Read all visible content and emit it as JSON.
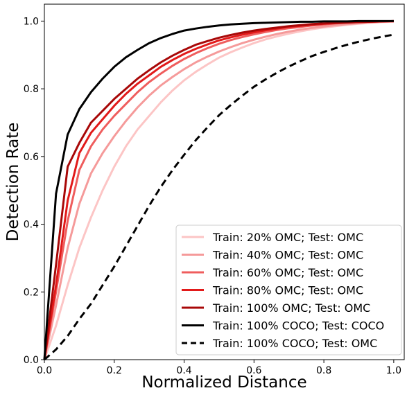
{
  "chart_data": {
    "type": "line",
    "xlabel": "Normalized Distance",
    "ylabel": "Detection Rate",
    "xlim": [
      0.0,
      1.03
    ],
    "ylim": [
      0.0,
      1.05
    ],
    "x_ticks": [
      0.0,
      0.2,
      0.4,
      0.6,
      0.8,
      1.0
    ],
    "x_tick_labels": [
      "0.0",
      "0.2",
      "0.4",
      "0.6",
      "0.8",
      "1.0"
    ],
    "y_ticks": [
      0.0,
      0.2,
      0.4,
      0.6,
      0.8,
      1.0
    ],
    "y_tick_labels": [
      "0.0",
      "0.2",
      "0.4",
      "0.6",
      "0.8",
      "1.0"
    ],
    "grid": false,
    "legend_position": "bottom-right",
    "x": [
      0.0,
      0.0333,
      0.0667,
      0.1,
      0.1333,
      0.1667,
      0.2,
      0.2333,
      0.2667,
      0.3,
      0.3333,
      0.3667,
      0.4,
      0.4333,
      0.4667,
      0.5,
      0.5333,
      0.5667,
      0.6,
      0.6333,
      0.6667,
      0.7,
      0.7333,
      0.7667,
      0.8,
      0.8333,
      0.8667,
      0.9,
      0.9333,
      0.9667,
      1.0
    ],
    "series": [
      {
        "name": "Train: 20%  OMC; Test: OMC",
        "color": "#fcc5c5",
        "dash": "solid",
        "values": [
          0.0,
          0.1,
          0.22,
          0.33,
          0.42,
          0.5,
          0.57,
          0.63,
          0.68,
          0.72,
          0.76,
          0.795,
          0.825,
          0.85,
          0.872,
          0.892,
          0.908,
          0.922,
          0.935,
          0.946,
          0.955,
          0.963,
          0.97,
          0.976,
          0.981,
          0.985,
          0.989,
          0.992,
          0.995,
          0.997,
          0.998
        ]
      },
      {
        "name": "Train: 40%  OMC; Test: OMC",
        "color": "#f59a9a",
        "dash": "solid",
        "values": [
          0.0,
          0.16,
          0.33,
          0.46,
          0.55,
          0.61,
          0.66,
          0.705,
          0.745,
          0.78,
          0.81,
          0.835,
          0.858,
          0.878,
          0.895,
          0.91,
          0.923,
          0.935,
          0.945,
          0.954,
          0.962,
          0.969,
          0.975,
          0.98,
          0.984,
          0.988,
          0.991,
          0.994,
          0.996,
          0.998,
          0.999
        ]
      },
      {
        "name": "Train: 60%  OMC; Test: OMC",
        "color": "#ef5d5d",
        "dash": "solid",
        "values": [
          0.0,
          0.2,
          0.41,
          0.56,
          0.63,
          0.68,
          0.72,
          0.755,
          0.79,
          0.82,
          0.845,
          0.868,
          0.888,
          0.905,
          0.92,
          0.933,
          0.944,
          0.953,
          0.961,
          0.968,
          0.974,
          0.979,
          0.983,
          0.987,
          0.99,
          0.993,
          0.995,
          0.997,
          0.998,
          0.999,
          0.999
        ]
      },
      {
        "name": "Train: 80%  OMC; Test: OMC",
        "color": "#e21a1a",
        "dash": "solid",
        "values": [
          0.0,
          0.22,
          0.47,
          0.61,
          0.67,
          0.71,
          0.75,
          0.785,
          0.815,
          0.84,
          0.865,
          0.885,
          0.903,
          0.918,
          0.931,
          0.943,
          0.952,
          0.96,
          0.967,
          0.973,
          0.978,
          0.983,
          0.986,
          0.989,
          0.992,
          0.994,
          0.996,
          0.997,
          0.998,
          0.999,
          1.0
        ]
      },
      {
        "name": "Train: 100% OMC; Test: OMC",
        "color": "#a80808",
        "dash": "solid",
        "values": [
          0.0,
          0.28,
          0.57,
          0.64,
          0.7,
          0.735,
          0.77,
          0.8,
          0.83,
          0.855,
          0.878,
          0.898,
          0.915,
          0.93,
          0.941,
          0.951,
          0.959,
          0.966,
          0.972,
          0.977,
          0.981,
          0.985,
          0.988,
          0.991,
          0.993,
          0.995,
          0.996,
          0.997,
          0.998,
          0.999,
          1.0
        ]
      },
      {
        "name": "Train: 100% COCO; Test: COCO",
        "color": "#000000",
        "dash": "solid",
        "values": [
          0.0,
          0.49,
          0.665,
          0.74,
          0.79,
          0.83,
          0.865,
          0.893,
          0.915,
          0.935,
          0.95,
          0.962,
          0.972,
          0.978,
          0.983,
          0.987,
          0.99,
          0.992,
          0.994,
          0.995,
          0.996,
          0.997,
          0.998,
          0.998,
          0.999,
          0.999,
          0.999,
          1.0,
          1.0,
          1.0,
          1.0
        ]
      },
      {
        "name": "Train: 100% COCO; Test: OMC",
        "color": "#000000",
        "dash": "dashed",
        "values": [
          0.0,
          0.03,
          0.07,
          0.12,
          0.165,
          0.22,
          0.275,
          0.335,
          0.395,
          0.455,
          0.51,
          0.56,
          0.605,
          0.648,
          0.686,
          0.722,
          0.752,
          0.78,
          0.806,
          0.828,
          0.848,
          0.866,
          0.882,
          0.897,
          0.909,
          0.92,
          0.93,
          0.939,
          0.947,
          0.954,
          0.96
        ]
      }
    ]
  }
}
